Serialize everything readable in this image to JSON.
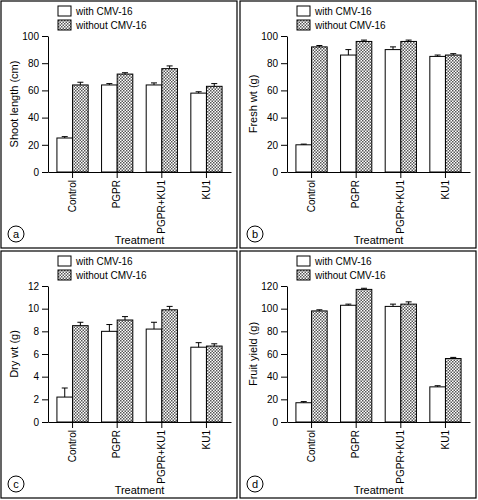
{
  "chart_data": [
    {
      "type": "bar",
      "annotations": [
        "a"
      ],
      "x_label": "Treatment",
      "y_label": "Shoot length (cm)",
      "categories": [
        "Control",
        "PGPR",
        "PGPR+KU1",
        "KU1"
      ],
      "series": [
        {
          "name": "with CMV-16",
          "color": "#ffffff",
          "values": [
            25,
            64,
            64,
            58
          ],
          "errors": [
            1,
            1,
            1.5,
            1
          ]
        },
        {
          "name": "without CMV-16",
          "color": "#555555",
          "values": [
            64,
            72,
            76,
            63
          ],
          "errors": [
            2,
            1,
            2,
            2
          ]
        }
      ],
      "ylim": [
        0,
        100
      ],
      "yticks": [
        0,
        20,
        40,
        60,
        80,
        100
      ],
      "grid": false,
      "legend": "upper left"
    },
    {
      "type": "bar",
      "annotations": [
        "b"
      ],
      "x_label": "Treatment",
      "y_label": "Fresh wt (g)",
      "categories": [
        "Control",
        "PGPR",
        "PGPR+KU1",
        "KU1"
      ],
      "series": [
        {
          "name": "with CMV-16",
          "color": "#ffffff",
          "values": [
            20,
            86,
            90,
            85
          ],
          "errors": [
            0.5,
            4,
            2,
            1
          ]
        },
        {
          "name": "without CMV-16",
          "color": "#555555",
          "values": [
            92,
            96,
            96,
            86
          ],
          "errors": [
            1,
            1,
            1,
            1
          ]
        }
      ],
      "ylim": [
        0,
        100
      ],
      "yticks": [
        0,
        20,
        40,
        60,
        80,
        100
      ],
      "grid": false,
      "legend": "upper left"
    },
    {
      "type": "bar",
      "annotations": [
        "c"
      ],
      "x_label": "Treatment",
      "y_label": "Dry wt (g)",
      "categories": [
        "Control",
        "PGPR",
        "PGPR+KU1",
        "KU1"
      ],
      "series": [
        {
          "name": "with CMV-16",
          "color": "#ffffff",
          "values": [
            2.2,
            8,
            8.2,
            6.6
          ],
          "errors": [
            0.8,
            0.6,
            0.6,
            0.4
          ]
        },
        {
          "name": "without CMV-16",
          "color": "#555555",
          "values": [
            8.5,
            9,
            9.9,
            6.7
          ],
          "errors": [
            0.3,
            0.3,
            0.3,
            0.2
          ]
        }
      ],
      "ylim": [
        0,
        12
      ],
      "yticks": [
        0,
        2,
        4,
        6,
        8,
        10,
        12
      ],
      "grid": false,
      "legend": "upper left"
    },
    {
      "type": "bar",
      "annotations": [
        "d"
      ],
      "x_label": "Treatment",
      "y_label": "Fruit yield (g)",
      "categories": [
        "Control",
        "PGPR",
        "PGPR+KU1",
        "KU1"
      ],
      "series": [
        {
          "name": "with CMV-16",
          "color": "#ffffff",
          "values": [
            17,
            103,
            102,
            31
          ],
          "errors": [
            1,
            1,
            2,
            1
          ]
        },
        {
          "name": "without CMV-16",
          "color": "#555555",
          "values": [
            98,
            117,
            104,
            56
          ],
          "errors": [
            1,
            1,
            2,
            1
          ]
        }
      ],
      "ylim": [
        0,
        120
      ],
      "yticks": [
        0,
        20,
        40,
        60,
        80,
        100,
        120
      ],
      "grid": false,
      "legend": "upper left"
    }
  ]
}
